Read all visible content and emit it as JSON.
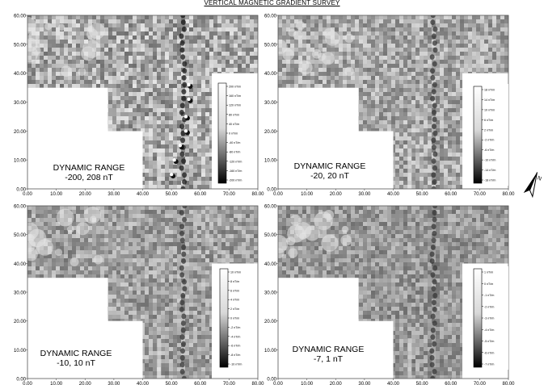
{
  "title": "VERTICAL MAGNETIC GRADIENT SURVEY",
  "north_icon": "north-arrow-icon",
  "y_ticks": [
    "0.00",
    "10.00",
    "20.00",
    "30.00",
    "40.00",
    "50.00",
    "60.00"
  ],
  "x_ticks": [
    "0.00",
    "10.00",
    "20.00",
    "30.00",
    "40.00",
    "50.00",
    "60.00",
    "70.00",
    "80.00"
  ],
  "panels": [
    {
      "range_title": "DYNAMIC RANGE",
      "range_value": "-200, 208 nT",
      "legend_labels": [
        "200 nT/m",
        "160 nT/m",
        "120 nT/m",
        "80 nT/m",
        "40 nT/m",
        "0 nT/m",
        "-40 nT/m",
        "-80 nT/m",
        "-120 nT/m",
        "-160 nT/m",
        "-200 nT/m"
      ]
    },
    {
      "range_title": "DYNAMIC RANGE",
      "range_value": "-20, 20 nT",
      "legend_labels": [
        "18 nT/m",
        "14 nT/m",
        "10 nT/m",
        "6 nT/m",
        "2 nT/m",
        "-2 nT/m",
        "-6 nT/m",
        "-10 nT/m",
        "-14 nT/m",
        "-18 nT/m"
      ]
    },
    {
      "range_title": "DYNAMIC RANGE",
      "range_value": "-10, 10 nT",
      "legend_labels": [
        "10 nT/m",
        "8 nT/m",
        "6 nT/m",
        "4 nT/m",
        "2 nT/m",
        "0 nT/m",
        "-2 nT/m",
        "-4 nT/m",
        "-6 nT/m",
        "-8 nT/m",
        "-10 nT/m"
      ]
    },
    {
      "range_title": "DYNAMIC RANGE",
      "range_value": "-7, 1 nT",
      "legend_labels": [
        "1 nT/m",
        "0 nT/m",
        "-1 nT/m",
        "-2 nT/m",
        "-3 nT/m",
        "-4 nT/m",
        "-5 nT/m",
        "-6 nT/m",
        "-7 nT/m"
      ]
    }
  ]
}
